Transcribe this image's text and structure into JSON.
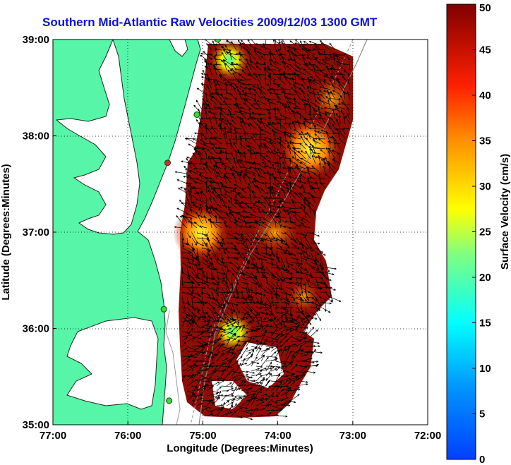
{
  "title": "Southern Mid-Atlantic Raw Velocities 2009/12/03 1300 GMT",
  "map": {
    "xlabel": "Longitude (Degrees:Minutes)",
    "ylabel": "Latitude (Degrees:Minutes)",
    "lon_range": [
      -77,
      -72
    ],
    "lat_range": [
      35,
      39
    ],
    "x_ticks": [
      "77:00",
      "76:00",
      "75:00",
      "74:00",
      "73:00",
      "72:00"
    ],
    "y_ticks": [
      "35:00",
      "36:00",
      "37:00",
      "38:00",
      "39:00"
    ],
    "land_color": "#57f5a8",
    "grid": "dotted"
  },
  "colorbar": {
    "label": "Surface Velocity (cm/s)",
    "min": 0,
    "max": 50,
    "ticks": [
      "0",
      "5",
      "10",
      "15",
      "20",
      "25",
      "30",
      "35",
      "40",
      "45",
      "50"
    ],
    "colormap": "jet"
  },
  "stations": [
    {
      "lon": -74.8,
      "lat": 39.0,
      "color": "#33dd33"
    },
    {
      "lon": -75.08,
      "lat": 38.22,
      "color": "#33dd33"
    },
    {
      "lon": -75.47,
      "lat": 37.72,
      "color": "#ee2222"
    },
    {
      "lon": -75.52,
      "lat": 36.2,
      "color": "#33dd33"
    },
    {
      "lon": -75.45,
      "lat": 35.25,
      "color": "#33dd33"
    }
  ]
}
